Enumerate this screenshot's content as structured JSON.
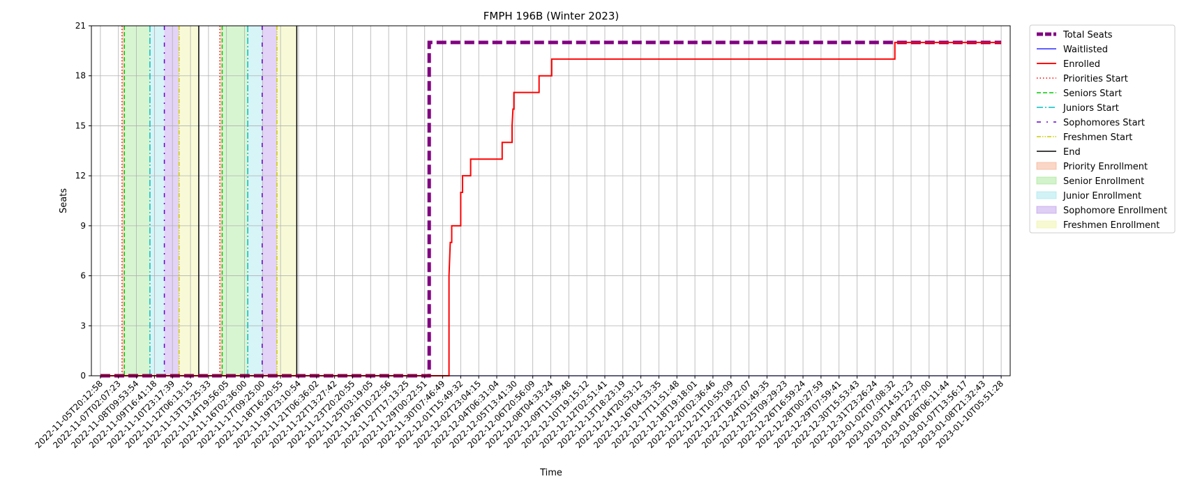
{
  "chart_data": {
    "type": "line",
    "title": "FMPH 196B (Winter 2023)",
    "xlabel": "Time",
    "ylabel": "Seats",
    "ylim": [
      0,
      21
    ],
    "yticks": [
      0,
      3,
      6,
      9,
      12,
      15,
      18,
      21
    ],
    "grid": true,
    "legend_position": "outside-right",
    "x_ticks": [
      "2022-11-05T20:12:58",
      "2022-11-07T02:07:23",
      "2022-11-08T09:53:54",
      "2022-11-09T16:41:18",
      "2022-11-10T23:17:39",
      "2022-11-12T06:13:15",
      "2022-11-13T13:25:33",
      "2022-11-14T19:56:05",
      "2022-11-16T02:36:00",
      "2022-11-17T09:25:00",
      "2022-11-18T16:20:55",
      "2022-11-19T23:10:54",
      "2022-11-21T06:36:02",
      "2022-11-22T13:27:42",
      "2022-11-23T20:20:55",
      "2022-11-25T03:19:05",
      "2022-11-26T10:22:56",
      "2022-11-27T17:13:25",
      "2022-11-29T00:22:51",
      "2022-11-30T07:46:49",
      "2022-12-01T15:49:32",
      "2022-12-02T23:04:15",
      "2022-12-04T06:31:04",
      "2022-12-05T13:41:30",
      "2022-12-06T20:56:09",
      "2022-12-08T04:33:24",
      "2022-12-09T11:59:48",
      "2022-12-10T19:15:12",
      "2022-12-12T02:51:41",
      "2022-12-13T18:23:19",
      "2022-12-14T20:53:12",
      "2022-12-16T04:33:35",
      "2022-12-17T11:51:48",
      "2022-12-18T19:18:01",
      "2022-12-20T02:36:46",
      "2022-12-21T10:55:09",
      "2022-12-22T18:22:07",
      "2022-12-24T01:49:35",
      "2022-12-25T09:29:23",
      "2022-12-26T16:59:24",
      "2022-12-28T00:27:59",
      "2022-12-29T07:59:41",
      "2022-12-30T15:53:43",
      "2022-12-31T23:26:24",
      "2023-01-02T07:08:32",
      "2023-01-03T14:51:23",
      "2023-01-04T22:27:00",
      "2023-01-06T06:11:44",
      "2023-01-07T13:56:17",
      "2023-01-08T21:32:43",
      "2023-01-10T05:51:28"
    ],
    "series": [
      {
        "name": "Total Seats",
        "color": "#800080",
        "style": "dashed-thick",
        "points": [
          [
            0,
            0
          ],
          [
            18.25,
            0
          ],
          [
            18.25,
            20
          ],
          [
            50,
            20
          ]
        ]
      },
      {
        "name": "Waitlisted",
        "color": "#0000ff",
        "style": "solid-thin",
        "points": [
          [
            0,
            0
          ],
          [
            50,
            0
          ]
        ]
      },
      {
        "name": "Enrolled",
        "color": "#ff0000",
        "style": "solid",
        "points": [
          [
            0,
            0
          ],
          [
            19.35,
            0
          ],
          [
            19.35,
            6
          ],
          [
            19.42,
            8
          ],
          [
            19.5,
            8
          ],
          [
            19.5,
            9
          ],
          [
            20.0,
            9
          ],
          [
            20.0,
            11
          ],
          [
            20.1,
            11
          ],
          [
            20.1,
            12
          ],
          [
            20.55,
            12
          ],
          [
            20.55,
            13
          ],
          [
            22.3,
            13
          ],
          [
            22.3,
            14
          ],
          [
            22.85,
            14
          ],
          [
            22.85,
            15
          ],
          [
            22.9,
            16
          ],
          [
            22.95,
            16
          ],
          [
            22.95,
            17
          ],
          [
            24.35,
            17
          ],
          [
            24.35,
            18
          ],
          [
            25.05,
            18
          ],
          [
            25.05,
            19
          ],
          [
            44.1,
            19
          ],
          [
            44.1,
            20
          ],
          [
            50,
            20
          ]
        ]
      }
    ],
    "period_markers": [
      {
        "name": "Priorities Start",
        "color": "#ff0000",
        "style": "dotted",
        "x": [
          1.2,
          6.63
        ]
      },
      {
        "name": "Seniors Start",
        "color": "#00cc00",
        "style": "dashed",
        "x": [
          1.33,
          6.76
        ]
      },
      {
        "name": "Juniors Start",
        "color": "#00bfbf",
        "style": "dashdot",
        "x": [
          2.75,
          8.18
        ]
      },
      {
        "name": "Sophomores Start",
        "color": "#6600cc",
        "style": "loose-dashdot",
        "x": [
          3.55,
          8.98
        ]
      },
      {
        "name": "Freshmen Start",
        "color": "#cccc00",
        "style": "dashdotdot",
        "x": [
          4.37,
          9.8
        ]
      },
      {
        "name": "End",
        "color": "#000000",
        "style": "solid",
        "x": [
          5.46,
          10.9
        ]
      }
    ],
    "shaded_periods": [
      {
        "name": "Priority Enrollment",
        "color": "#f4a582",
        "ranges": [
          [
            1.2,
            1.33
          ],
          [
            6.63,
            6.76
          ]
        ]
      },
      {
        "name": "Senior Enrollment",
        "color": "#9be58c",
        "ranges": [
          [
            1.33,
            2.75
          ],
          [
            6.76,
            8.18
          ]
        ]
      },
      {
        "name": "Junior Enrollment",
        "color": "#9ce4ea",
        "ranges": [
          [
            2.75,
            3.55
          ],
          [
            8.18,
            8.98
          ]
        ]
      },
      {
        "name": "Sophomore Enrollment",
        "color": "#b892e8",
        "ranges": [
          [
            3.55,
            4.37
          ],
          [
            8.98,
            9.8
          ]
        ]
      },
      {
        "name": "Freshmen Enrollment",
        "color": "#eef29c",
        "ranges": [
          [
            4.37,
            5.46
          ],
          [
            9.8,
            10.9
          ]
        ]
      }
    ]
  }
}
